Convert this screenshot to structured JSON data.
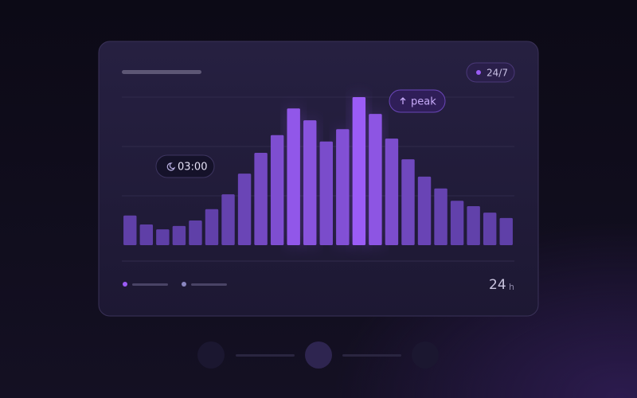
{
  "chart_data": {
    "type": "bar",
    "values": [
      0.6,
      0.42,
      0.32,
      0.39,
      0.5,
      0.73,
      1.03,
      1.45,
      1.87,
      2.23,
      2.77,
      2.53,
      2.1,
      2.35,
      3.0,
      2.66,
      2.16,
      1.74,
      1.39,
      1.15,
      0.9,
      0.79,
      0.66,
      0.55
    ],
    "ylim": [
      0,
      3
    ],
    "yticks": [
      1,
      2,
      3
    ],
    "grid": true,
    "color": "#5e3fa6",
    "peak_color": "#9b5cf6"
  },
  "badge": "24/7",
  "annotations": {
    "time": "03:00",
    "peak": "peak"
  },
  "footer": {
    "value": "24",
    "unit": "h"
  }
}
